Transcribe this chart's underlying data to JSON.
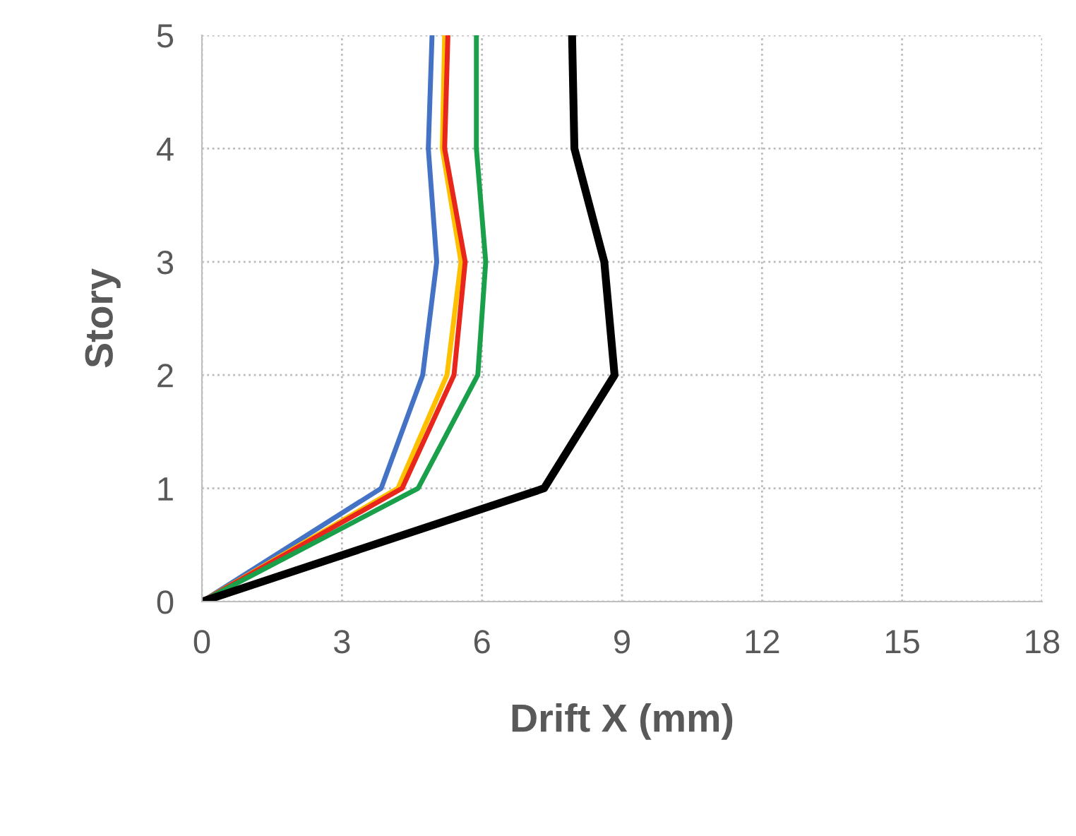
{
  "chart_data": {
    "type": "line",
    "xlabel": "Drift X (mm)",
    "ylabel": "Story",
    "xlim": [
      0,
      18
    ],
    "xticks": [
      0,
      3,
      6,
      9,
      12,
      15,
      18
    ],
    "ylim": [
      0,
      5
    ],
    "yticks": [
      0,
      1,
      2,
      3,
      4,
      5
    ],
    "grid": true,
    "legend": false,
    "marker": "none",
    "line_style": "solid",
    "series": [
      {
        "color": "#4472c4",
        "x": [
          0,
          3.84,
          4.73,
          5.03,
          4.85,
          4.93
        ],
        "values": [
          0,
          1,
          2,
          3,
          4,
          5
        ]
      },
      {
        "color": "#ffc000",
        "x": [
          0,
          4.2,
          5.25,
          5.55,
          5.15,
          5.2
        ],
        "values": [
          0,
          1,
          2,
          3,
          4,
          5
        ]
      },
      {
        "color": "#e8261c",
        "x": [
          0,
          4.29,
          5.4,
          5.64,
          5.2,
          5.27
        ],
        "values": [
          0,
          1,
          2,
          3,
          4,
          5
        ]
      },
      {
        "color": "#1aa04a",
        "x": [
          0,
          4.63,
          5.91,
          6.08,
          5.88,
          5.88
        ],
        "values": [
          0,
          1,
          2,
          3,
          4,
          5
        ]
      },
      {
        "color": "#000000",
        "x": [
          0,
          7.33,
          8.84,
          8.62,
          7.98,
          7.93
        ],
        "values": [
          0,
          1,
          2,
          3,
          4,
          5
        ]
      }
    ]
  }
}
